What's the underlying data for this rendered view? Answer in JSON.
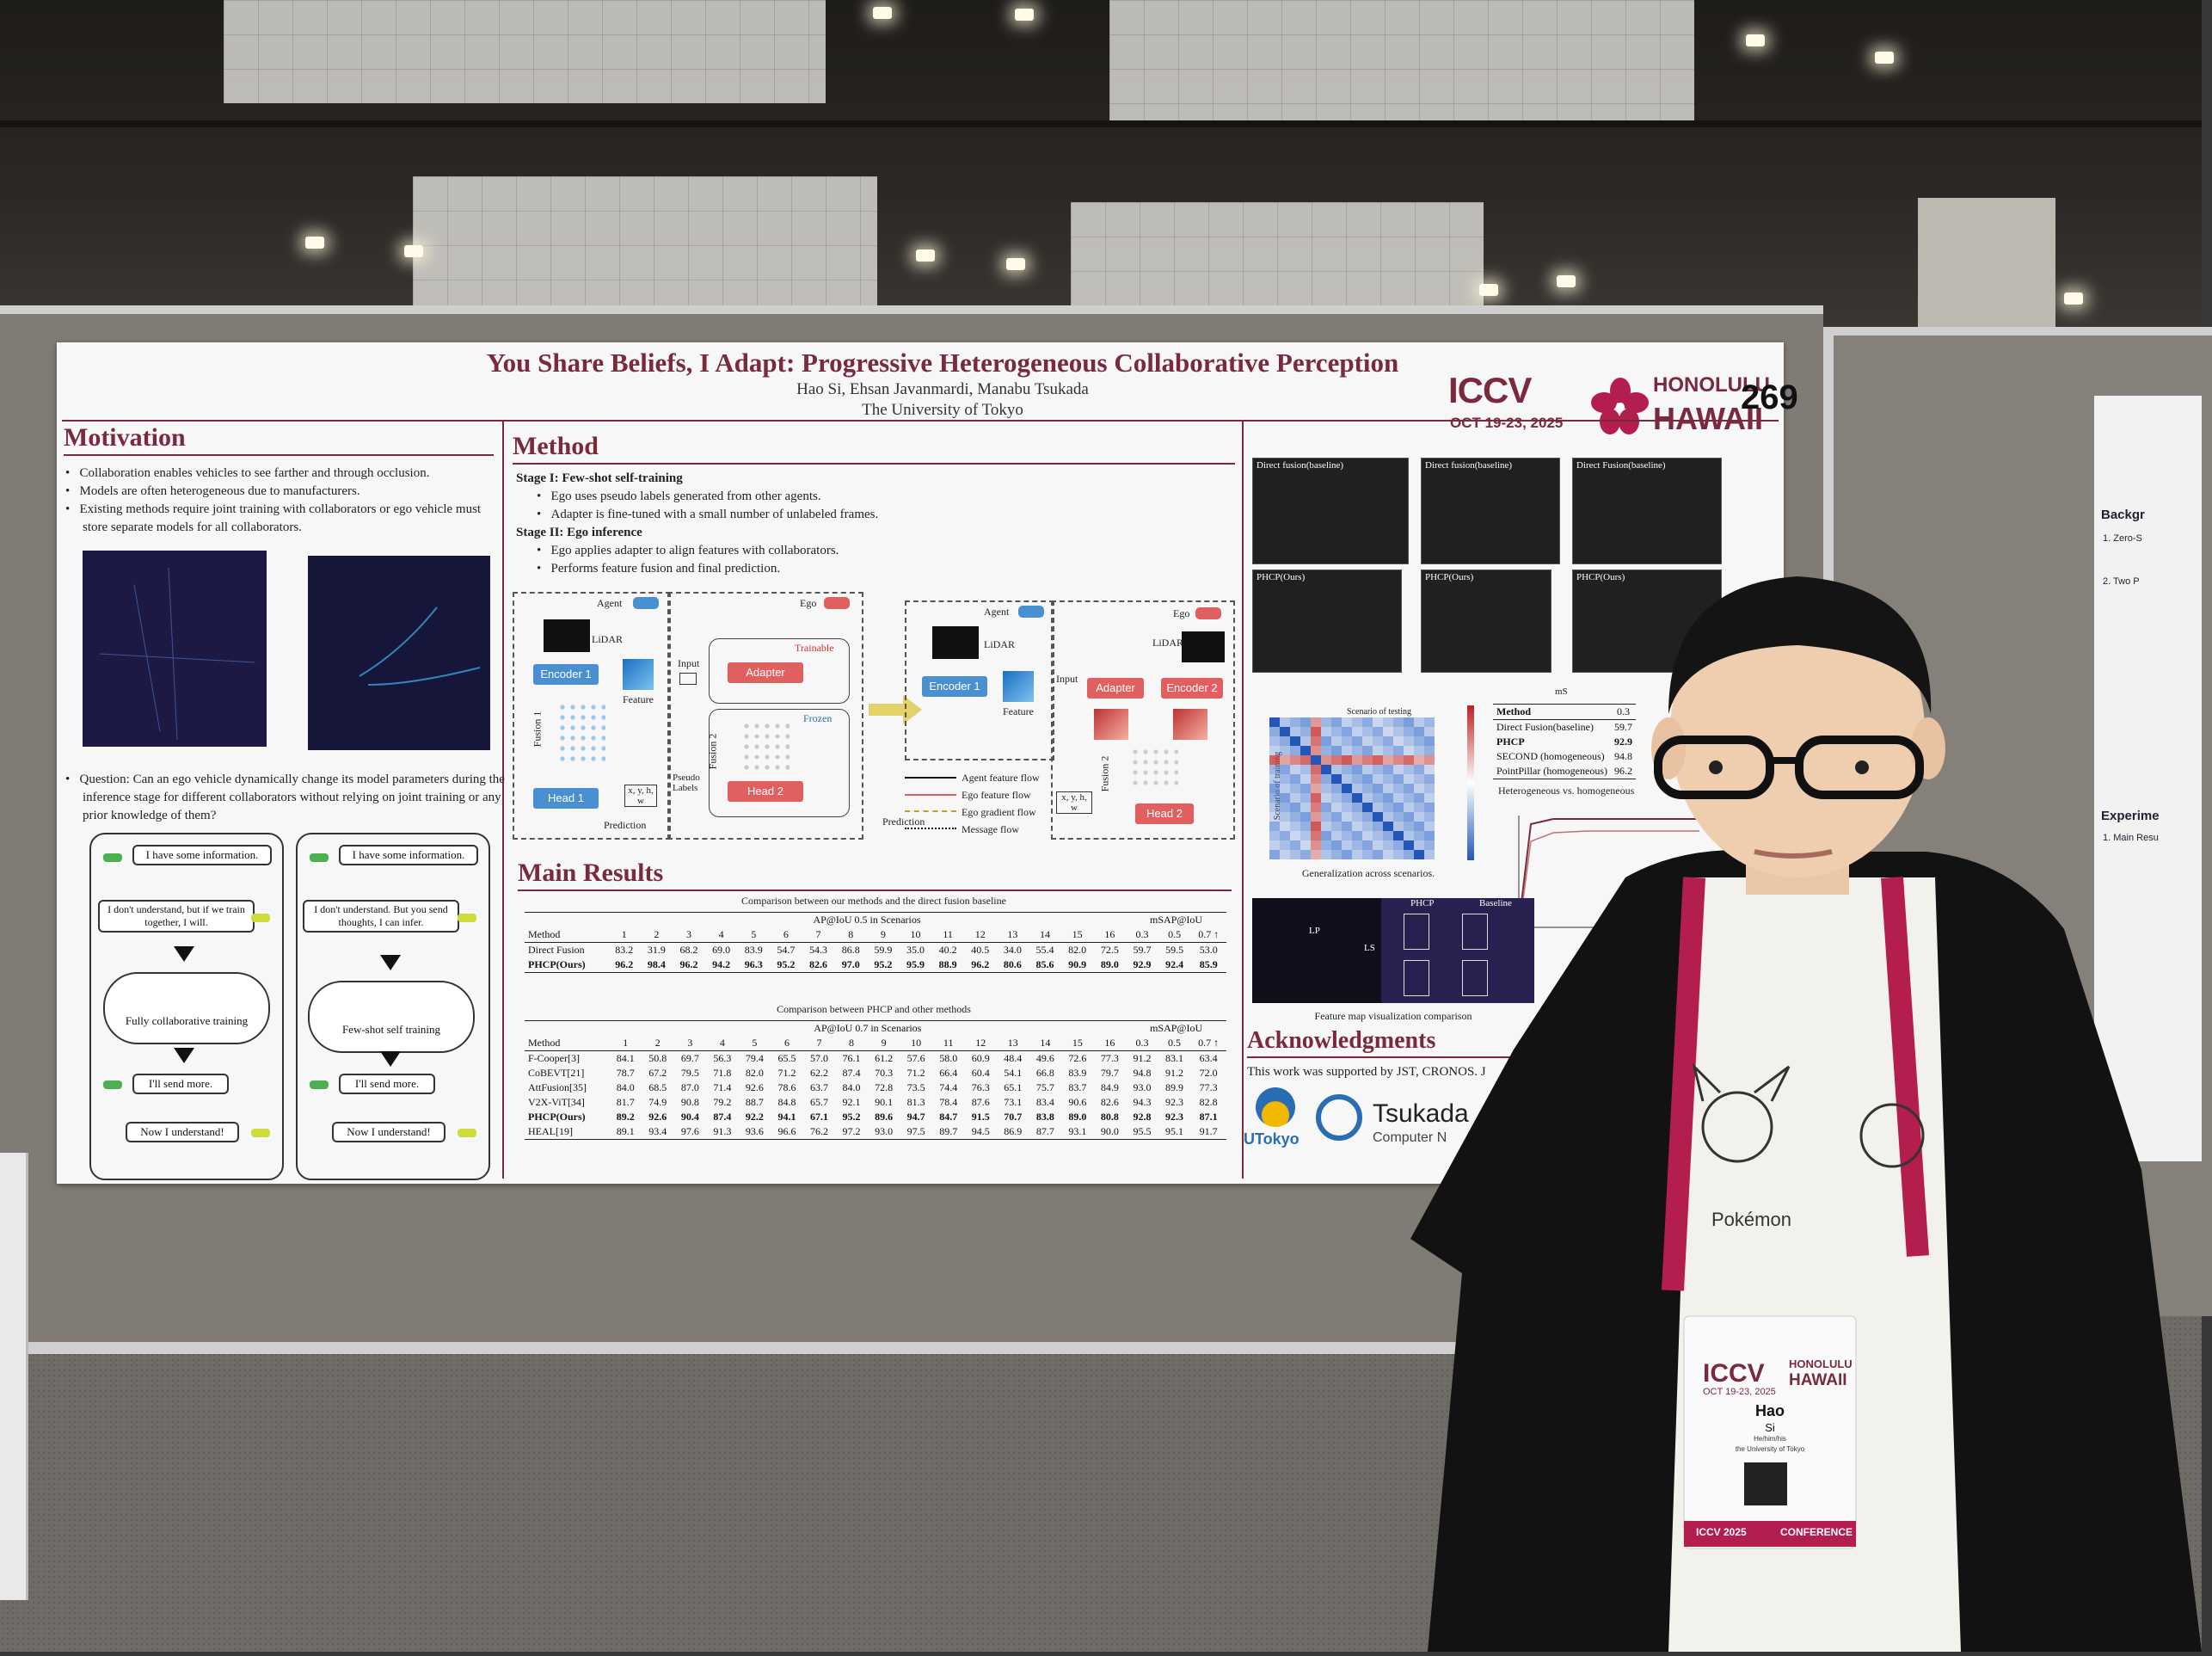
{
  "poster": {
    "title": "You Share Beliefs, I Adapt: Progressive Heterogeneous Collaborative Perception",
    "authors": "Hao Si, Ehsan Javanmardi, Manabu Tsukada",
    "affiliation": "The University of Tokyo",
    "board_number": "269",
    "conference": {
      "name": "ICCV",
      "dates": "OCT 19-23, 2025",
      "city": "HONOLULU",
      "state": "HAWAII"
    },
    "motivation": {
      "title": "Motivation",
      "bullets": [
        "Collaboration enables vehicles to see farther and through occlusion.",
        "Models are often heterogeneous due to manufacturers.",
        "Existing methods require joint training with collaborators or ego vehicle must store separate models for all collaborators."
      ],
      "question": "Question:  Can an ego vehicle dynamically change its model parameters during the inference stage for different collaborators without relying on joint training or any prior knowledge of them?",
      "comic_left": {
        "b1": "I have some information.",
        "b2": "I don't understand, but if we train together, I will.",
        "cloud": "Fully collaborative training",
        "b3": "I'll send more.",
        "b4": "Now I understand!"
      },
      "comic_right": {
        "b1": "I have some information.",
        "b2": "I don't understand. But you send thoughts, I can infer.",
        "cloud": "Few-shot self training",
        "b3": "I'll send more.",
        "b4": "Now I understand!"
      }
    },
    "method": {
      "title": "Method",
      "stage1": "Stage I: Few-shot self-training",
      "stage1_bullets": [
        "Ego uses pseudo labels generated from other agents.",
        "Adapter is fine-tuned with a small number of unlabeled frames."
      ],
      "stage2": "Stage II: Ego inference",
      "stage2_bullets": [
        "Ego applies adapter to align features with collaborators.",
        "Performs feature fusion and final prediction."
      ],
      "diagram": {
        "agent": "Agent",
        "ego": "Ego",
        "lidar": "LiDAR",
        "encoder1": "Encoder 1",
        "encoder2": "Encoder 2",
        "feature": "Feature",
        "fusion1": "Fusion 1",
        "fusion2": "Fusion 2",
        "head1": "Head 1",
        "head2": "Head 2",
        "input": "Input",
        "adapter": "Adapter",
        "trainable": "Trainable",
        "frozen": "Frozen",
        "pseudo_labels": "Pseudo Labels",
        "xyhw": "x, y, h, w",
        "prediction": "Prediction",
        "legend": [
          "Agent feature flow",
          "Ego feature flow",
          "Ego gradient flow",
          "Message flow"
        ]
      }
    },
    "results": {
      "title": "Main Results",
      "table1": {
        "caption": "Comparison between our methods and the direct fusion baseline",
        "group1": "AP@IoU 0.5 in Scenarios",
        "group2": "mSAP@IoU",
        "headers": [
          "Method",
          "1",
          "2",
          "3",
          "4",
          "5",
          "6",
          "7",
          "8",
          "9",
          "10",
          "11",
          "12",
          "13",
          "14",
          "15",
          "16",
          "0.3",
          "0.5",
          "0.7 ↑"
        ],
        "rows": [
          [
            "Direct Fusion",
            "83.2",
            "31.9",
            "68.2",
            "69.0",
            "83.9",
            "54.7",
            "54.3",
            "86.8",
            "59.9",
            "35.0",
            "40.2",
            "40.5",
            "34.0",
            "55.4",
            "82.0",
            "72.5",
            "59.7",
            "59.5",
            "53.0"
          ],
          [
            "PHCP(Ours)",
            "96.2",
            "98.4",
            "96.2",
            "94.2",
            "96.3",
            "95.2",
            "82.6",
            "97.0",
            "95.2",
            "95.9",
            "88.9",
            "96.2",
            "80.6",
            "85.6",
            "90.9",
            "89.0",
            "92.9",
            "92.4",
            "85.9"
          ]
        ]
      },
      "table2": {
        "caption": "Comparison between PHCP and other methods",
        "group1": "AP@IoU 0.7 in Scenarios",
        "group2": "mSAP@IoU",
        "headers": [
          "Method",
          "1",
          "2",
          "3",
          "4",
          "5",
          "6",
          "7",
          "8",
          "9",
          "10",
          "11",
          "12",
          "13",
          "14",
          "15",
          "16",
          "0.3",
          "0.5",
          "0.7 ↑"
        ],
        "rows": [
          [
            "F-Cooper[3]",
            "84.1",
            "50.8",
            "69.7",
            "56.3",
            "79.4",
            "65.5",
            "57.0",
            "76.1",
            "61.2",
            "57.6",
            "58.0",
            "60.9",
            "48.4",
            "49.6",
            "72.6",
            "77.3",
            "91.2",
            "83.1",
            "63.4"
          ],
          [
            "CoBEVT[21]",
            "78.7",
            "67.2",
            "79.5",
            "71.8",
            "82.0",
            "71.2",
            "62.2",
            "87.4",
            "70.3",
            "71.2",
            "66.4",
            "60.4",
            "54.1",
            "66.8",
            "83.9",
            "79.7",
            "94.8",
            "91.2",
            "72.0"
          ],
          [
            "AttFusion[35]",
            "84.0",
            "68.5",
            "87.0",
            "71.4",
            "92.6",
            "78.6",
            "63.7",
            "84.0",
            "72.8",
            "73.5",
            "74.4",
            "76.3",
            "65.1",
            "75.7",
            "83.7",
            "84.9",
            "93.0",
            "89.9",
            "77.3"
          ],
          [
            "V2X-ViT[34]",
            "81.7",
            "74.9",
            "90.8",
            "79.2",
            "88.7",
            "84.8",
            "65.7",
            "92.1",
            "90.1",
            "81.3",
            "78.4",
            "87.6",
            "73.1",
            "83.4",
            "90.6",
            "82.6",
            "94.3",
            "92.3",
            "82.8"
          ],
          [
            "PHCP(Ours)",
            "89.2",
            "92.6",
            "90.4",
            "87.4",
            "92.2",
            "94.1",
            "67.1",
            "95.2",
            "89.6",
            "94.7",
            "84.7",
            "91.5",
            "70.7",
            "83.8",
            "89.0",
            "80.8",
            "92.8",
            "92.3",
            "87.1"
          ],
          [
            "HEAL[19]",
            "89.1",
            "93.4",
            "97.6",
            "91.3",
            "93.6",
            "96.6",
            "76.2",
            "97.2",
            "93.0",
            "97.5",
            "89.7",
            "94.5",
            "86.9",
            "87.7",
            "93.1",
            "90.0",
            "95.5",
            "95.1",
            "91.7"
          ]
        ]
      }
    },
    "right_column": {
      "vis_labels_top": [
        "Direct fusion(baseline)",
        "Direct fusion(baseline)",
        "Direct Fusion(baseline)"
      ],
      "vis_labels_bottom": [
        "PHCP(Ours)",
        "PHCP(Ours)",
        "PHCP(Ours)"
      ],
      "heatmap_title": "Scenario of testing",
      "heatmap_ylabel": "Scenario of training",
      "heatmap_caption": "Generalization across scenarios.",
      "mini_table": {
        "header": [
          "Method",
          "mS",
          "0.3"
        ],
        "rows": [
          [
            "Direct Fusion(baseline)",
            "59.7"
          ],
          [
            "PHCP",
            "92.9"
          ],
          [
            "SECOND (homogeneous)",
            "94.8"
          ],
          [
            "PointPillar (homogeneous)",
            "96.2"
          ]
        ]
      },
      "line_title": "Heterogeneous vs. homogeneous",
      "feature_caption": "Feature map visualization comparison",
      "feature_labels": {
        "phcp": "PHCP",
        "baseline": "Baseline",
        "lp": "LP",
        "ls": "LS"
      },
      "ack_title": "Acknowledgments",
      "ack_text": "This work was supported by JST, CRONOS. J",
      "sponsor1": "UTokyo",
      "sponsor2": "Tsukada",
      "sponsor2_sub": "Computer N"
    }
  },
  "badge": {
    "conference": "ICCV",
    "dates": "OCT 19-23, 2025",
    "city": "HONOLULU",
    "state": "HAWAII",
    "first": "Hao",
    "last": "Si",
    "pronouns": "He/him/his",
    "org": "the University of Tokyo",
    "footer_left": "ICCV 2025",
    "footer_right": "CONFERENCE"
  },
  "shirt_text": "Pokémon",
  "right_poster": {
    "lines": [
      "Backgr",
      "1. Zero-S",
      "2. Two P",
      "Experime",
      "1. Main Resu"
    ]
  },
  "colors": {
    "maroon": "#7a2a3d",
    "lanyard": "#b31e4f",
    "shirt": "#f3f1ec",
    "jacket": "#121212"
  }
}
